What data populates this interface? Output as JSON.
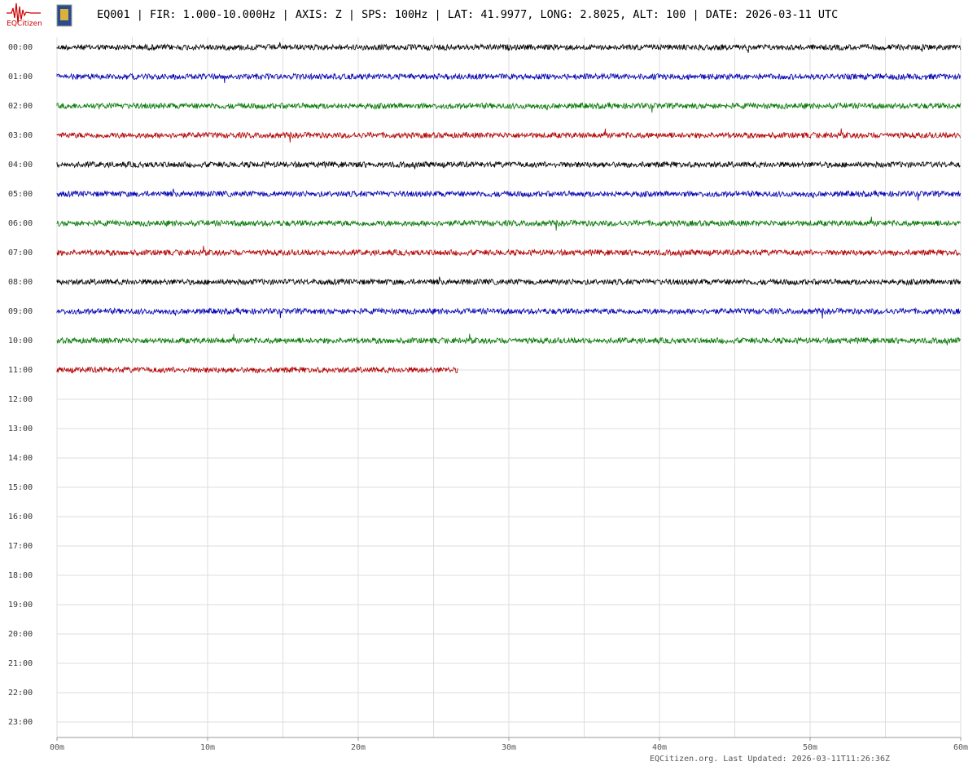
{
  "chart_data": {
    "type": "helicorder",
    "logo_text": "EQCitizen",
    "title": "EQ001 | FIR: 1.000-10.000Hz | AXIS: Z | SPS: 100Hz | LAT: 41.9977, LONG: 2.8025, ALT: 100 | DATE: 2026-03-11 UTC",
    "categories": [
      "00:00",
      "01:00",
      "02:00",
      "03:00",
      "04:00",
      "05:00",
      "06:00",
      "07:00",
      "08:00",
      "09:00",
      "10:00",
      "11:00",
      "12:00",
      "13:00",
      "14:00",
      "15:00",
      "16:00",
      "17:00",
      "18:00",
      "19:00",
      "20:00",
      "21:00",
      "22:00",
      "23:00"
    ],
    "trace_ends": [
      60,
      60,
      60,
      60,
      60,
      60,
      60,
      60,
      60,
      60,
      60,
      26.6
    ],
    "colors": [
      "#000000",
      "#0000b4",
      "#007800",
      "#b40000"
    ],
    "xlim": [
      0,
      60
    ],
    "xticks": [
      {
        "value": 0,
        "label": "00m"
      },
      {
        "value": 10,
        "label": "10m"
      },
      {
        "value": 20,
        "label": "20m"
      },
      {
        "value": 30,
        "label": "30m"
      },
      {
        "value": 40,
        "label": "40m"
      },
      {
        "value": 50,
        "label": "50m"
      },
      {
        "value": 60,
        "label": "60m"
      }
    ],
    "xgrid": [
      0,
      5,
      10,
      15,
      20,
      25,
      30,
      35,
      40,
      45,
      50,
      55,
      60
    ],
    "grid": true,
    "footer": "EQCitizen.org. Last Updated: 2026-03-11T11:26:36Z"
  }
}
